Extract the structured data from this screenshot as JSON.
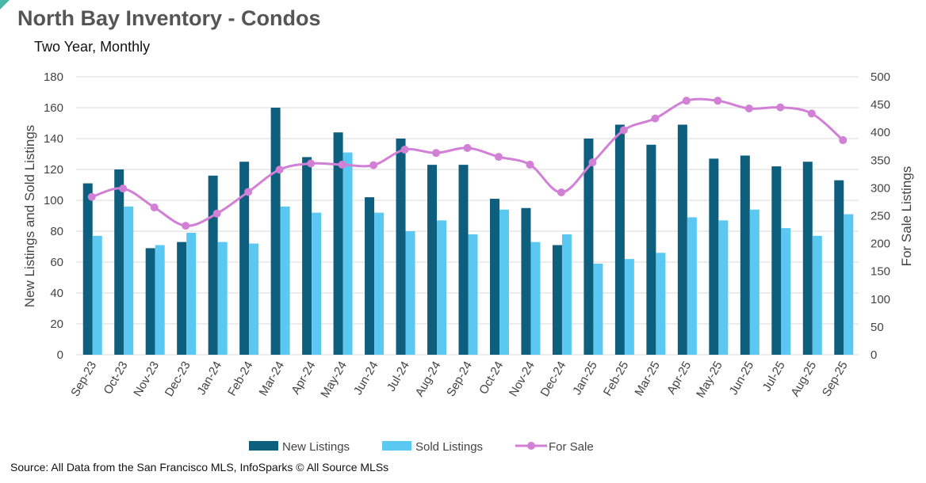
{
  "header": {
    "title": "North Bay Inventory - Condos",
    "subtitle": "Two Year, Monthly"
  },
  "footer": {
    "source": "Source: All Data from the San Francisco MLS, InfoSparks © All Source MLSs"
  },
  "colors": {
    "new_listings": "#0e5e7e",
    "sold_listings": "#5bc8f2",
    "for_sale": "#d27fd6",
    "gridline": "#d9d9d9",
    "title": "#555555"
  },
  "chart_data": {
    "type": "bar",
    "title": "North Bay Inventory - Condos",
    "subtitle": "Two Year, Monthly",
    "categories": [
      "Sep-23",
      "Oct-23",
      "Nov-23",
      "Dec-23",
      "Jan-24",
      "Feb-24",
      "Mar-24",
      "Apr-24",
      "May-24",
      "Jun-24",
      "Jul-24",
      "Aug-24",
      "Sep-24",
      "Oct-24",
      "Nov-24",
      "Dec-24",
      "Jan-25",
      "Feb-25",
      "Mar-25",
      "Apr-25",
      "May-25",
      "Jun-25",
      "Jul-25",
      "Aug-25",
      "Sep-25"
    ],
    "ylabel": "New Listings and Sold Listings",
    "y2label": "For Sale Listings",
    "ylim": [
      0,
      180
    ],
    "yticks": [
      0,
      20,
      40,
      60,
      80,
      100,
      120,
      140,
      160,
      180
    ],
    "y2lim": [
      0,
      500
    ],
    "y2ticks": [
      0,
      50,
      100,
      150,
      200,
      250,
      300,
      350,
      400,
      450,
      500
    ],
    "grid": true,
    "legend_position": "bottom",
    "series": [
      {
        "name": "New Listings",
        "type": "bar",
        "axis": "left",
        "values": [
          111,
          120,
          69,
          73,
          116,
          125,
          160,
          128,
          144,
          102,
          140,
          123,
          123,
          101,
          95,
          71,
          140,
          149,
          136,
          149,
          127,
          129,
          122,
          125,
          113
        ]
      },
      {
        "name": "Sold Listings",
        "type": "bar",
        "axis": "left",
        "values": [
          77,
          96,
          71,
          79,
          73,
          72,
          96,
          92,
          131,
          92,
          80,
          87,
          78,
          94,
          73,
          78,
          59,
          62,
          66,
          89,
          87,
          94,
          82,
          77,
          91
        ]
      },
      {
        "name": "For Sale",
        "type": "line",
        "axis": "right",
        "values": [
          284,
          299,
          265,
          232,
          254,
          293,
          333,
          344,
          342,
          341,
          369,
          363,
          372,
          356,
          342,
          292,
          346,
          404,
          425,
          457,
          457,
          443,
          445,
          434,
          386
        ]
      }
    ]
  }
}
